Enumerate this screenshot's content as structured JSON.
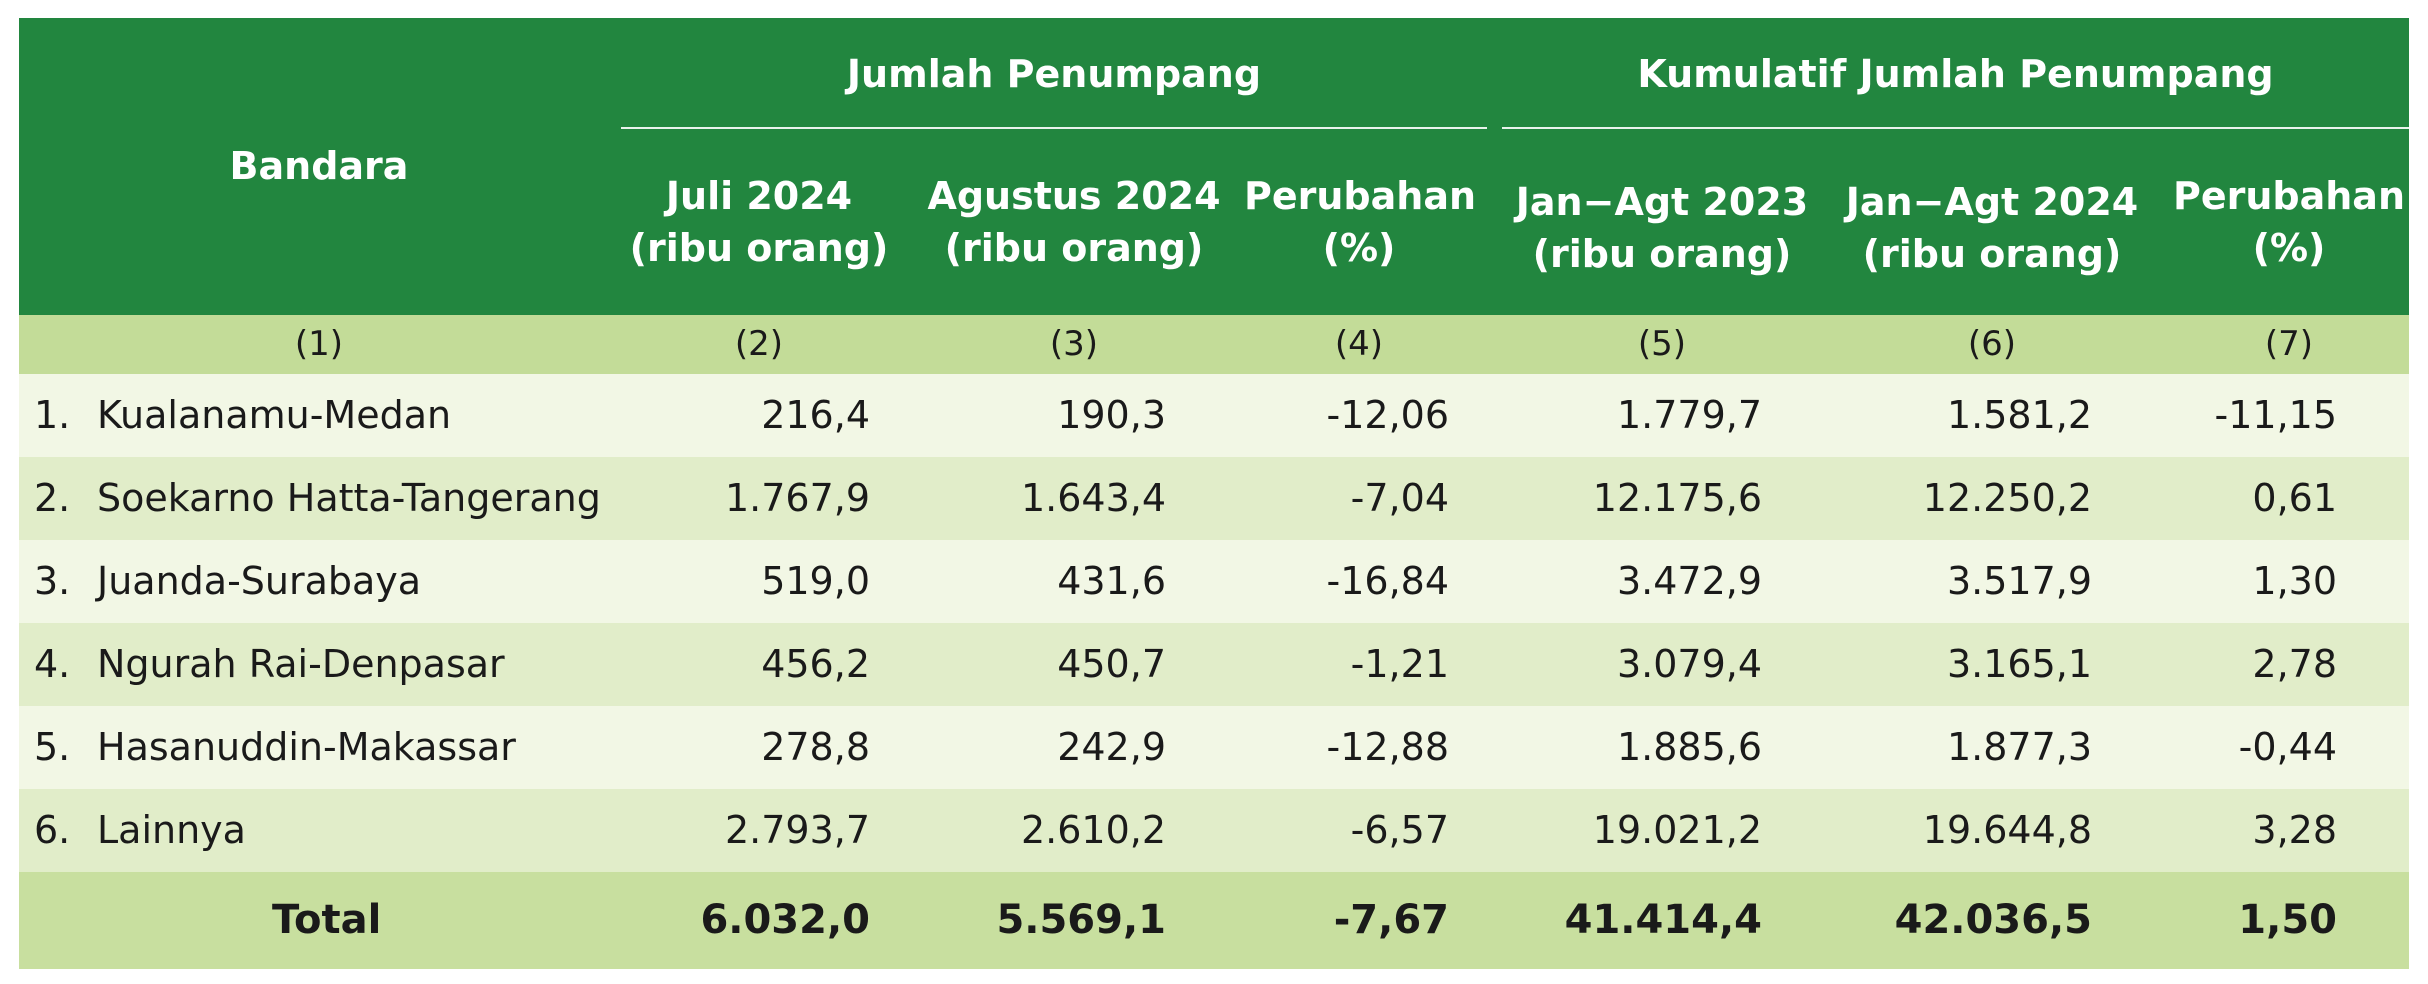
{
  "header": {
    "bandara": "Bandara",
    "group1": "Jumlah Penumpang",
    "group2": "Kumulatif Jumlah Penumpang",
    "col2": [
      "Juli 2024",
      "(ribu orang)"
    ],
    "col3": [
      "Agustus 2024",
      "(ribu orang)"
    ],
    "col4": [
      "Perubahan",
      "(%)"
    ],
    "col5": [
      "Jan−Agt 2023",
      "(ribu orang)"
    ],
    "col6": [
      "Jan−Agt 2024",
      "(ribu orang)"
    ],
    "col7": [
      "Perubahan",
      "(%)"
    ]
  },
  "col_numbers": [
    "(1)",
    "(2)",
    "(3)",
    "(4)",
    "(5)",
    "(6)",
    "(7)"
  ],
  "rows": [
    {
      "no": "1.",
      "name": "Kualanamu-Medan",
      "jul": "216,4",
      "agt": "190,3",
      "chg": "-12,06",
      "cum23": "1.779,7",
      "cum24": "1.581,2",
      "cumchg": "-11,15"
    },
    {
      "no": "2.",
      "name": "Soekarno Hatta-Tangerang",
      "jul": "1.767,9",
      "agt": "1.643,4",
      "chg": "-7,04",
      "cum23": "12.175,6",
      "cum24": "12.250,2",
      "cumchg": "0,61"
    },
    {
      "no": "3.",
      "name": "Juanda-Surabaya",
      "jul": "519,0",
      "agt": "431,6",
      "chg": "-16,84",
      "cum23": "3.472,9",
      "cum24": "3.517,9",
      "cumchg": "1,30"
    },
    {
      "no": "4.",
      "name": "Ngurah Rai-Denpasar",
      "jul": "456,2",
      "agt": "450,7",
      "chg": "-1,21",
      "cum23": "3.079,4",
      "cum24": "3.165,1",
      "cumchg": "2,78"
    },
    {
      "no": "5.",
      "name": "Hasanuddin-Makassar",
      "jul": "278,8",
      "agt": "242,9",
      "chg": "-12,88",
      "cum23": "1.885,6",
      "cum24": "1.877,3",
      "cumchg": "-0,44"
    },
    {
      "no": "6.",
      "name": "Lainnya",
      "jul": "2.793,7",
      "agt": "2.610,2",
      "chg": "-6,57",
      "cum23": "19.021,2",
      "cum24": "19.644,8",
      "cumchg": "3,28"
    }
  ],
  "total": {
    "label": "Total",
    "jul": "6.032,0",
    "agt": "5.569,1",
    "chg": "-7,67",
    "cum23": "41.414,4",
    "cum24": "42.036,5",
    "cumchg": "1,50"
  },
  "colors": {
    "header_bg": "#22863f",
    "subheader_bg": "#c3dc98",
    "row_light": "#f2f7e5",
    "row_dark": "#e1edc9",
    "total_bg": "#c8df9f"
  }
}
